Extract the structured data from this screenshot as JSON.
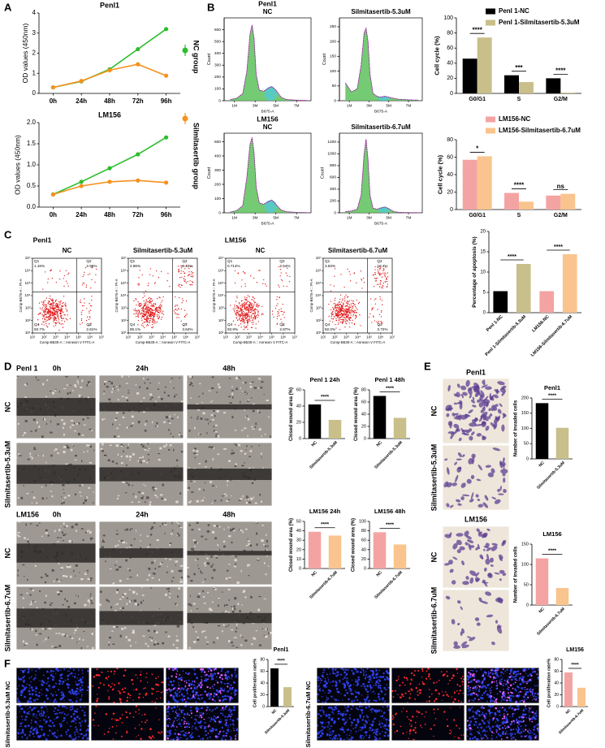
{
  "figure": {
    "panel_letters": [
      "A",
      "B",
      "C",
      "D",
      "E",
      "F"
    ],
    "wound": {
      "groups": [
        "Penl 1",
        "LM156"
      ],
      "times": [
        "0h",
        "24h",
        "48h"
      ],
      "conditions": [
        "NC",
        "Silmitasertib-5.3uM",
        "NC",
        "Silmitasertib-6.7uM"
      ]
    },
    "transwell": {
      "groups": [
        "Penl1",
        "LM156"
      ],
      "conditions": [
        "NC",
        "Silmitasertib-5.3uM",
        "NC",
        "Silmitasertib-6.7uM"
      ]
    },
    "proliferation": {
      "conditions": [
        "NC",
        "Silmitasertib-5.3uM",
        "NC",
        "Silmitasertib-6.7uM"
      ]
    }
  },
  "chart_data": [
    {
      "type": "line",
      "title": "Penl1",
      "y_label": "OD values (450nm)",
      "categories": [
        "0h",
        "24h",
        "48h",
        "72h",
        "96h"
      ],
      "series": [
        {
          "name": "NC group",
          "color": "#2bbd2b",
          "values": [
            0.3,
            0.6,
            1.2,
            2.2,
            3.2
          ]
        },
        {
          "name": "Silmitasertib group",
          "color": "#f5921e",
          "values": [
            0.3,
            0.62,
            1.15,
            1.45,
            0.88
          ]
        }
      ],
      "ylim": [
        0,
        4
      ],
      "yticks": [
        0,
        1,
        2,
        3,
        4
      ]
    },
    {
      "type": "line",
      "title": "LM156",
      "y_label": "OD values (450nm)",
      "categories": [
        "0h",
        "24h",
        "48h",
        "72h",
        "96h"
      ],
      "series": [
        {
          "color": "#2bbd2b",
          "values": [
            0.3,
            0.6,
            0.92,
            1.25,
            1.65
          ]
        },
        {
          "color": "#f5921e",
          "values": [
            0.3,
            0.5,
            0.6,
            0.63,
            0.58
          ]
        }
      ],
      "ylim": [
        0,
        2
      ],
      "yticks": [
        {
          "value": 0,
          "label": "0.0"
        },
        0.5,
        {
          "value": 1,
          "label": "1.0"
        },
        1.5,
        {
          "value": 2,
          "label": "2.0"
        }
      ]
    },
    {
      "type": "density",
      "group": "Penl1",
      "title": "NC",
      "x_label": "B675-A",
      "y_label": "Count",
      "color": "#5cc25c",
      "x": [
        0.6,
        1.2,
        1.8,
        2.2,
        2.5,
        2.7,
        2.9,
        3.1,
        3.4,
        3.8,
        4.2,
        4.6,
        5.0,
        5.5,
        6.0,
        7.0,
        8.0
      ],
      "values": [
        10,
        20,
        60,
        250,
        560,
        640,
        520,
        220,
        90,
        80,
        100,
        120,
        90,
        30,
        10,
        5,
        2
      ],
      "xlim": [
        0,
        8.4
      ],
      "xticks": [
        {
          "value": 1,
          "label": "1M"
        },
        {
          "value": 3,
          "label": "3M"
        },
        {
          "value": 5,
          "label": "5M"
        },
        {
          "value": 7,
          "label": "7M"
        }
      ],
      "ylim": [
        0,
        700
      ],
      "yticks": [
        0,
        100,
        200,
        300,
        400,
        500,
        600
      ]
    },
    {
      "type": "density",
      "title": "Silmitasertib-5.3uM",
      "x_label": "B675-A",
      "y_label": "Count",
      "color": "#5cc25c",
      "x": [
        0.6,
        1.2,
        1.8,
        2.2,
        2.5,
        2.7,
        2.9,
        3.1,
        3.4,
        3.8,
        4.2,
        4.6,
        5.0,
        5.5,
        6.0,
        7.0,
        8.0
      ],
      "values": [
        60,
        30,
        40,
        120,
        230,
        245,
        200,
        90,
        25,
        15,
        12,
        15,
        12,
        8,
        5,
        3,
        2
      ],
      "xlim": [
        0,
        8.4
      ],
      "xticks": [
        {
          "value": 1,
          "label": "1M"
        },
        {
          "value": 3,
          "label": "3M"
        },
        {
          "value": 5,
          "label": "5M"
        },
        {
          "value": 7,
          "label": "7M"
        }
      ],
      "ylim": [
        0,
        280
      ],
      "yticks": [
        0,
        50,
        100,
        150,
        200,
        250
      ]
    },
    {
      "type": "density",
      "group": "LM156",
      "title": "NC",
      "x_label": "B675-A",
      "y_label": "Count",
      "color": "#5cc25c",
      "x": [
        0.6,
        1.2,
        1.8,
        2.2,
        2.5,
        2.7,
        2.9,
        3.1,
        3.4,
        3.8,
        4.2,
        4.6,
        5.0,
        5.5,
        6.0,
        7.0,
        8.0
      ],
      "values": [
        5,
        15,
        50,
        250,
        480,
        530,
        420,
        180,
        70,
        60,
        75,
        90,
        60,
        20,
        8,
        3,
        1
      ],
      "xlim": [
        0,
        8.4
      ],
      "xticks": [
        {
          "value": 1,
          "label": "1M"
        },
        {
          "value": 3,
          "label": "3M"
        },
        {
          "value": 5,
          "label": "5M"
        },
        {
          "value": 7,
          "label": "7M"
        }
      ],
      "ylim": [
        0,
        560
      ],
      "yticks": [
        0,
        100,
        200,
        300,
        400,
        500
      ]
    },
    {
      "type": "density",
      "title": "Silmitasertib-6.7uM",
      "x_label": "B675-A",
      "y_label": "Count",
      "color": "#5cc25c",
      "x": [
        0.6,
        1.2,
        1.8,
        2.2,
        2.5,
        2.7,
        2.9,
        3.1,
        3.4,
        3.8,
        4.2,
        4.6,
        5.0,
        5.5,
        6.0,
        7.0,
        8.0
      ],
      "values": [
        20,
        30,
        60,
        300,
        1000,
        1250,
        900,
        300,
        80,
        60,
        80,
        100,
        70,
        20,
        8,
        3,
        1
      ],
      "xlim": [
        0,
        8.4
      ],
      "xticks": [
        {
          "value": 1,
          "label": "1M"
        },
        {
          "value": 3,
          "label": "3M"
        },
        {
          "value": 5,
          "label": "5M"
        },
        {
          "value": 7,
          "label": "7M"
        }
      ],
      "ylim": [
        0,
        1350
      ],
      "yticks": [
        0,
        200,
        400,
        600,
        800,
        1000,
        1200
      ]
    },
    {
      "type": "bar",
      "y_label": "Cell cycle (%)",
      "categories": [
        "G0/G1",
        "S",
        "G2/M"
      ],
      "series": [
        {
          "name": "Penl 1-NC",
          "color": "#000000",
          "values": [
            46,
            24,
            20
          ]
        },
        {
          "name": "Penl 1-Silmitasertib-5.3uM",
          "color": "#c8bf8a",
          "values": [
            74,
            15,
            1
          ]
        }
      ],
      "ylim": [
        0,
        100
      ],
      "yticks": [
        0,
        20,
        40,
        60,
        80,
        100
      ],
      "annotations": [
        "****",
        "***",
        "****"
      ]
    },
    {
      "type": "bar",
      "y_label": "Cell cycle (%)",
      "categories": [
        "G0/G1",
        "S",
        "G2/M"
      ],
      "series": [
        {
          "name": "LM156-NC",
          "color": "#f4a3a3",
          "values": [
            57,
            19,
            16
          ]
        },
        {
          "name": "LM156-Silmitasertib-6.7uM",
          "color": "#f9c48e",
          "values": [
            61,
            9,
            18
          ]
        }
      ],
      "ylim": [
        0,
        80
      ],
      "yticks": [
        0,
        20,
        40,
        60,
        80
      ],
      "annotations": [
        "*",
        "****",
        "ns"
      ]
    },
    {
      "type": "quadrant",
      "group": "Penl1",
      "title": "NC",
      "x_label": "Comp-B530-A :: Annexin V FITC-A",
      "y_label": "Comp-B675-A :: PI-A",
      "color": "#e01515",
      "log_scale": true,
      "quadrant_names": [
        "Q1",
        "Q2",
        "Q3",
        "Q4"
      ],
      "values": [
        1.16,
        2.96,
        2.61,
        93.7
      ],
      "value_labels": [
        "1.16%",
        "2.96%",
        "2.61%",
        "93.7%"
      ],
      "xlim": [
        10,
        10000000
      ],
      "xticks": [
        {
          "value": 10,
          "label": "10¹"
        },
        {
          "value": 100,
          "label": "10²"
        },
        {
          "value": 1000,
          "label": "10³"
        },
        {
          "value": 10000,
          "label": "10⁴"
        },
        {
          "value": 100000,
          "label": "10⁵"
        },
        {
          "value": 1000000,
          "label": "10⁶"
        },
        {
          "value": 10000000,
          "label": "10⁷"
        }
      ],
      "ylim": [
        10,
        10000000
      ],
      "yticks": [
        {
          "value": 10,
          "label": "10¹"
        },
        {
          "value": 100,
          "label": "10²"
        },
        {
          "value": 1000,
          "label": "10³"
        },
        {
          "value": 10000,
          "label": "10⁴"
        },
        {
          "value": 100000,
          "label": "10⁵"
        },
        {
          "value": 1000000,
          "label": "10⁶"
        },
        {
          "value": 10000000,
          "label": "10⁷"
        }
      ]
    },
    {
      "type": "quadrant",
      "title": "Silmitasertib-5.3uM",
      "x_label": "Comp-B530-A :: Annexin V FITC-A",
      "y_label": "Comp-B675-A :: PI-A",
      "color": "#e01515",
      "log_scale": true,
      "quadrant_names": [
        "Q1",
        "Q2",
        "Q3",
        "Q4"
      ],
      "values": [
        2.86,
        8.42,
        3.64,
        85.1
      ],
      "value_labels": [
        "2.86%",
        "8.42%",
        "3.64%",
        "85.1%"
      ],
      "xlim": [
        10,
        10000000
      ],
      "xticks": [
        {
          "value": 10,
          "label": "10¹"
        },
        {
          "value": 100,
          "label": "10²"
        },
        {
          "value": 1000,
          "label": "10³"
        },
        {
          "value": 10000,
          "label": "10⁴"
        },
        {
          "value": 100000,
          "label": "10⁵"
        },
        {
          "value": 1000000,
          "label": "10⁶"
        },
        {
          "value": 10000000,
          "label": "10⁷"
        }
      ],
      "ylim": [
        10,
        10000000
      ],
      "yticks": [
        {
          "value": 10,
          "label": "10¹"
        },
        {
          "value": 100,
          "label": "10²"
        },
        {
          "value": 1000,
          "label": "10³"
        },
        {
          "value": 10000,
          "label": "10⁴"
        },
        {
          "value": 100000,
          "label": "10⁵"
        },
        {
          "value": 1000000,
          "label": "10⁶"
        },
        {
          "value": 10000000,
          "label": "10⁷"
        }
      ]
    },
    {
      "type": "quadrant",
      "group": "LM156",
      "title": "NC",
      "x_label": "Comp-B530-A :: Annexin V FITC-A",
      "y_label": "Comp-B675-A :: PI-A",
      "color": "#e01515",
      "log_scale": true,
      "quadrant_names": [
        "Q1",
        "Q2",
        "Q3",
        "Q4"
      ],
      "values": [
        0.714,
        2.54,
        2.87,
        93.9
      ],
      "value_labels": [
        "0.714%",
        "2.54%",
        "2.87%",
        "93.9%"
      ],
      "xlim": [
        10,
        10000000
      ],
      "xticks": [
        {
          "value": 10,
          "label": "10¹"
        },
        {
          "value": 100,
          "label": "10²"
        },
        {
          "value": 1000,
          "label": "10³"
        },
        {
          "value": 10000,
          "label": "10⁴"
        },
        {
          "value": 100000,
          "label": "10⁵"
        },
        {
          "value": 1000000,
          "label": "10⁶"
        },
        {
          "value": 10000000,
          "label": "10⁷"
        }
      ],
      "ylim": [
        10,
        10000000
      ],
      "yticks": [
        {
          "value": 10,
          "label": "10¹"
        },
        {
          "value": 100,
          "label": "10²"
        },
        {
          "value": 1000,
          "label": "10³"
        },
        {
          "value": 10000,
          "label": "10⁴"
        },
        {
          "value": 100000,
          "label": "10⁵"
        },
        {
          "value": 1000000,
          "label": "10⁶"
        },
        {
          "value": 10000000,
          "label": "10⁷"
        }
      ]
    },
    {
      "type": "quadrant",
      "title": "Silmitasertib-6.7uM",
      "x_label": "Comp-B530-A :: Annexin V FITC-A",
      "y_label": "Comp-B675-A :: PI-A",
      "color": "#e01515",
      "log_scale": true,
      "quadrant_names": [
        "Q1",
        "Q2",
        "Q3",
        "Q4"
      ],
      "values": [
        3.83,
        10.4,
        3.72,
        82
      ],
      "value_labels": [
        "3.83%",
        "10.4%",
        "3.72%",
        "82.0%"
      ],
      "xlim": [
        10,
        10000000
      ],
      "xticks": [
        {
          "value": 10,
          "label": "10¹"
        },
        {
          "value": 100,
          "label": "10²"
        },
        {
          "value": 1000,
          "label": "10³"
        },
        {
          "value": 10000,
          "label": "10⁴"
        },
        {
          "value": 100000,
          "label": "10⁵"
        },
        {
          "value": 1000000,
          "label": "10⁶"
        },
        {
          "value": 10000000,
          "label": "10⁷"
        }
      ],
      "ylim": [
        10,
        10000000
      ],
      "yticks": [
        {
          "value": 10,
          "label": "10¹"
        },
        {
          "value": 100,
          "label": "10²"
        },
        {
          "value": 1000,
          "label": "10³"
        },
        {
          "value": 10000,
          "label": "10⁴"
        },
        {
          "value": 100000,
          "label": "10⁵"
        },
        {
          "value": 1000000,
          "label": "10⁶"
        },
        {
          "value": 10000000,
          "label": "10⁷"
        }
      ]
    },
    {
      "type": "bar",
      "y_label": "Percentage of apoptosis (%)",
      "categories": [
        "Penl 1-NC",
        "Penl 1-Silmitasertib-5.3uM",
        "LM156-NC",
        "LM156-Silmitasertib-6.7uM"
      ],
      "values": [
        5.3,
        12,
        5.3,
        14.4
      ],
      "colors": [
        "#000000",
        "#c8bf8a",
        "#f4a3a3",
        "#f9c48e"
      ],
      "ylim": [
        0,
        20
      ],
      "yticks": [
        0,
        5,
        10,
        15,
        20
      ],
      "annotations": [
        "****",
        "****"
      ]
    },
    {
      "type": "bar",
      "title": "Penl 1 24h",
      "y_label": "Closed wound area (%)",
      "categories": [
        "NC",
        "Silmitasertib-5.3uM"
      ],
      "values": [
        42,
        23
      ],
      "colors": [
        "#000000",
        "#c8bf8a"
      ],
      "ylim": [
        0,
        60
      ],
      "yticks": [
        0,
        20,
        40,
        60
      ],
      "annotations": [
        "****"
      ]
    },
    {
      "type": "bar",
      "title": "Penl 1 48h",
      "y_label": "Closed wound area (%)",
      "categories": [
        "NC",
        "Silmitasertib-5.3uM"
      ],
      "values": [
        70,
        34
      ],
      "colors": [
        "#000000",
        "#c8bf8a"
      ],
      "ylim": [
        0,
        80
      ],
      "yticks": [
        0,
        20,
        40,
        60,
        80
      ],
      "annotations": [
        "****"
      ]
    },
    {
      "type": "bar",
      "title": "LM156 24h",
      "y_label": "Closed wound area (%)",
      "categories": [
        "NC",
        "Silmitasertib-6.7uM"
      ],
      "values": [
        39,
        35
      ],
      "colors": [
        "#f4a3a3",
        "#f9c48e"
      ],
      "ylim": [
        0,
        50
      ],
      "yticks": [
        0,
        10,
        20,
        30,
        40,
        50
      ],
      "annotations": [
        "****"
      ]
    },
    {
      "type": "bar",
      "title": "LM156 48h",
      "y_label": "Closed wound area (%)",
      "categories": [
        "NC",
        "Silmitasertib-6.7uM"
      ],
      "values": [
        77,
        51
      ],
      "colors": [
        "#f4a3a3",
        "#f9c48e"
      ],
      "ylim": [
        0,
        100
      ],
      "yticks": [
        0,
        20,
        40,
        60,
        80,
        100
      ],
      "annotations": [
        "****"
      ]
    },
    {
      "type": "bar",
      "title": "Penl1",
      "y_label": "Number of invaded cells",
      "categories": [
        "NC",
        "Silmitasertib-5.3uM"
      ],
      "values": [
        183,
        102
      ],
      "colors": [
        "#000000",
        "#c8bf8a"
      ],
      "ylim": [
        0,
        200
      ],
      "yticks": [
        0,
        50,
        100,
        150,
        200
      ],
      "annotations": [
        "****"
      ]
    },
    {
      "type": "bar",
      "title": "LM156",
      "y_label": "Number of invaded cells",
      "categories": [
        "NC",
        "Silmitasertib-6.7uM"
      ],
      "values": [
        115,
        42
      ],
      "colors": [
        "#f4a3a3",
        "#f9c48e"
      ],
      "ylim": [
        0,
        150
      ],
      "yticks": [
        0,
        50,
        100,
        150
      ],
      "annotations": [
        "****"
      ]
    },
    {
      "type": "bar",
      "title": "Penl1",
      "y_label": "Cell proliferation rate%",
      "categories": [
        "NC",
        "Silmitasertib-5.3uM"
      ],
      "values": [
        65,
        33
      ],
      "colors": [
        "#000000",
        "#c8bf8a"
      ],
      "ylim": [
        0,
        80
      ],
      "yticks": [
        0,
        20,
        40,
        60,
        80
      ],
      "annotations": [
        "****"
      ]
    },
    {
      "type": "bar",
      "title": "LM156",
      "y_label": "Cell proliferation rate%",
      "categories": [
        "NC",
        "Silmitasertib-6.7uM"
      ],
      "values": [
        58,
        32
      ],
      "colors": [
        "#f4a3a3",
        "#f9c48e"
      ],
      "ylim": [
        0,
        80
      ],
      "yticks": [
        0,
        20,
        40,
        60,
        80
      ],
      "annotations": [
        "****"
      ]
    }
  ]
}
